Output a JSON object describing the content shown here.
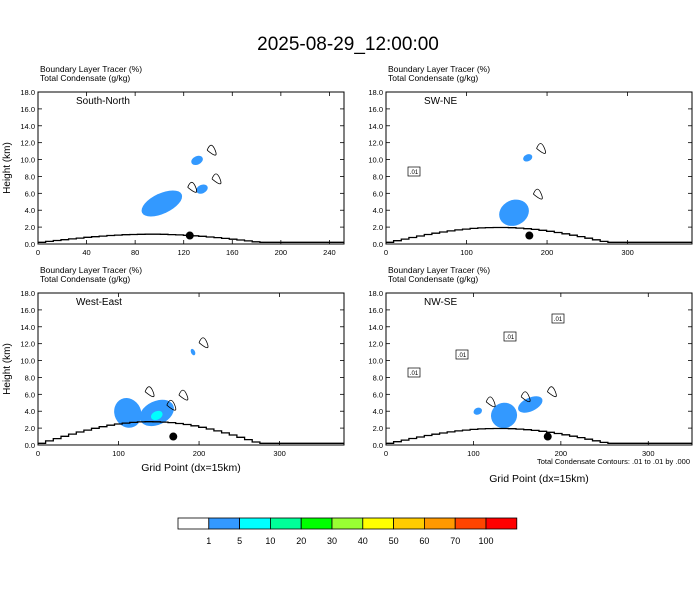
{
  "title": "2025-08-29_12:00:00",
  "footnote": "Total Condensate Contours: .01 to .01 by .000",
  "colorbar": {
    "colors": [
      "#ffffff",
      "#3399ff",
      "#00ffff",
      "#00ff99",
      "#00ff00",
      "#99ff33",
      "#ffff00",
      "#ffcc00",
      "#ff9900",
      "#ff4400",
      "#ff0000"
    ],
    "labels": [
      "1",
      "5",
      "10",
      "20",
      "30",
      "40",
      "50",
      "60",
      "70",
      "100"
    ]
  },
  "chart_data": [
    {
      "type": "contour",
      "panel_label": "South-North",
      "header_line1": "Boundary Layer Tracer   (%)",
      "header_line2": "Total Condensate   (g/kg)",
      "ylabel": "Height (km)",
      "xlabel": "",
      "xlim": [
        0,
        252
      ],
      "ylim": [
        0,
        18
      ],
      "xticks": [
        "0",
        "40",
        "80",
        "120",
        "160",
        "200",
        "240"
      ],
      "yticks": [
        "0.0",
        "2.0",
        "4.0",
        "6.0",
        "8.0",
        "10.0",
        "12.0",
        "14.0",
        "16.0",
        "18.0"
      ],
      "tracer_shading": [
        {
          "x": [
            84,
            120
          ],
          "y": [
            3.6,
            6.0
          ],
          "level": "5"
        },
        {
          "x": [
            130,
            140
          ],
          "y": [
            6.0,
            7.0
          ],
          "level": "5"
        },
        {
          "x": [
            126,
            136
          ],
          "y": [
            9.4,
            10.4
          ],
          "level": "5"
        }
      ],
      "condensate_labels": [],
      "marker": {
        "x": 125,
        "y": 1.0
      },
      "terrain_max_km": 1.2
    },
    {
      "type": "contour",
      "panel_label": "SW-NE",
      "header_line1": "Boundary Layer Tracer   (%)",
      "header_line2": "Total Condensate   (g/kg)",
      "ylabel": "",
      "xlabel": "",
      "xlim": [
        0,
        380
      ],
      "ylim": [
        0,
        18
      ],
      "xticks": [
        "0",
        "100",
        "200",
        "300"
      ],
      "yticks": [
        "0.0",
        "2.0",
        "4.0",
        "6.0",
        "8.0",
        "10.0",
        "12.0",
        "14.0",
        "16.0",
        "18.0"
      ],
      "tracer_shading": [
        {
          "x": [
            140,
            178
          ],
          "y": [
            2.2,
            5.2
          ],
          "level": "5"
        },
        {
          "x": [
            170,
            182
          ],
          "y": [
            9.8,
            10.6
          ],
          "level": "5"
        }
      ],
      "condensate_labels": [
        ".01"
      ],
      "marker": {
        "x": 178,
        "y": 1.0
      },
      "terrain_max_km": 2.2
    },
    {
      "type": "contour",
      "panel_label": "West-East",
      "header_line1": "Boundary Layer Tracer   (%)",
      "header_line2": "Total Condensate   (g/kg)",
      "ylabel": "Height (km)",
      "xlabel": "Grid Point (dx=15km)",
      "xlim": [
        0,
        380
      ],
      "ylim": [
        0,
        18
      ],
      "xticks": [
        "0",
        "100",
        "200",
        "300"
      ],
      "yticks": [
        "0.0",
        "2.0",
        "4.0",
        "6.0",
        "8.0",
        "10.0",
        "12.0",
        "14.0",
        "16.0",
        "18.0"
      ],
      "tracer_shading": [
        {
          "x": [
            95,
            128
          ],
          "y": [
            2.0,
            5.6
          ],
          "level": "5"
        },
        {
          "x": [
            125,
            170
          ],
          "y": [
            2.4,
            5.2
          ],
          "level": "5"
        },
        {
          "x": [
            140,
            155
          ],
          "y": [
            3.0,
            4.0
          ],
          "level": "10"
        },
        {
          "x": [
            190,
            195
          ],
          "y": [
            10.6,
            11.4
          ],
          "level": "5"
        }
      ],
      "condensate_labels": [],
      "marker": {
        "x": 168,
        "y": 1.0
      },
      "terrain_max_km": 3.2
    },
    {
      "type": "contour",
      "panel_label": "NW-SE",
      "header_line1": "Boundary Layer Tracer   (%)",
      "header_line2": "Total Condensate   (g/kg)",
      "ylabel": "",
      "xlabel": "Grid Point (dx=15km)",
      "xlim": [
        0,
        350
      ],
      "ylim": [
        0,
        18
      ],
      "xticks": [
        "0",
        "100",
        "200",
        "300"
      ],
      "yticks": [
        "0.0",
        "2.0",
        "4.0",
        "6.0",
        "8.0",
        "10.0",
        "12.0",
        "14.0",
        "16.0",
        "18.0"
      ],
      "tracer_shading": [
        {
          "x": [
            120,
            150
          ],
          "y": [
            2.0,
            5.0
          ],
          "level": "5"
        },
        {
          "x": [
            150,
            180
          ],
          "y": [
            4.0,
            5.6
          ],
          "level": "5"
        },
        {
          "x": [
            100,
            110
          ],
          "y": [
            3.6,
            4.4
          ],
          "level": "5"
        }
      ],
      "condensate_labels": [
        ".01",
        ".01",
        ".01",
        ".01"
      ],
      "marker": {
        "x": 185,
        "y": 1.0
      },
      "terrain_max_km": 2.2
    }
  ]
}
